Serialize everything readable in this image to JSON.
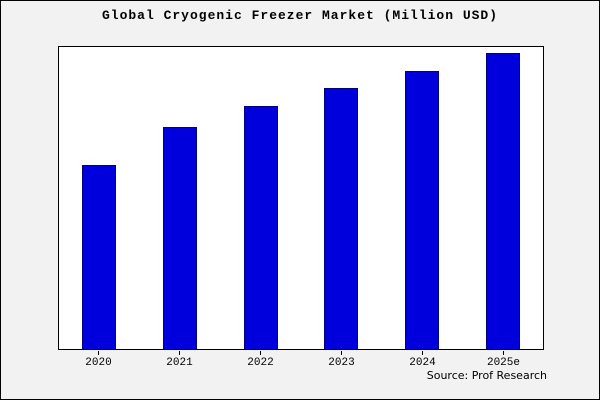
{
  "title": "Global Cryogenic Freezer Market (Million USD)",
  "source": "Source: Prof Research",
  "colors": {
    "frame_background": "#f2f2f2",
    "plot_background": "#ffffff",
    "border": "#000000",
    "bar_fill": "#0000dd",
    "bar_edge": "#000080"
  },
  "chart_data": {
    "type": "bar",
    "title": "Global Cryogenic Freezer Market (Million USD)",
    "categories": [
      "2020",
      "2021",
      "2022",
      "2023",
      "2024",
      "2025e"
    ],
    "values": [
      62,
      75,
      82,
      88,
      94,
      100
    ],
    "xlabel": "",
    "ylabel": "",
    "ylim": [
      0,
      102
    ],
    "y_axis_labels": "none (values are relative estimates; axis unlabeled in source image)",
    "grid": false,
    "legend": "none",
    "bar_color": "#0000dd",
    "bar_edge_color": "#000080",
    "annotation": "Source: Prof Research"
  }
}
